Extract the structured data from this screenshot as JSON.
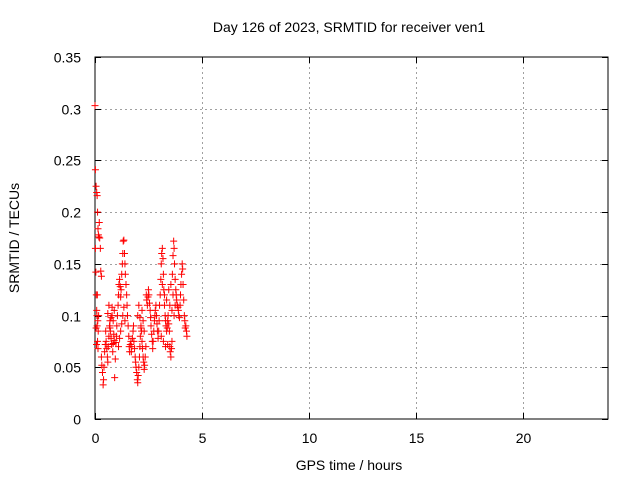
{
  "chart_data": {
    "type": "scatter",
    "title": "Day 126 of 2023, SRMTID for receiver ven1",
    "xlabel": "GPS time / hours",
    "ylabel": "SRMTID / TECUs",
    "xlim": [
      0,
      24
    ],
    "ylim": [
      0,
      0.35
    ],
    "xticks": [
      0,
      5,
      10,
      15,
      20
    ],
    "xtick_labels": [
      "0",
      "5",
      "10",
      "15",
      "20"
    ],
    "yticks": [
      0,
      0.05,
      0.1,
      0.15,
      0.2,
      0.25,
      0.3,
      0.35
    ],
    "ytick_labels": [
      "0",
      "0.05",
      "0.1",
      "0.15",
      "0.2",
      "0.25",
      "0.3",
      "0.35"
    ],
    "grid": true,
    "marker": "+",
    "marker_color": "#ff0000",
    "series": [
      {
        "name": "ven1",
        "points": [
          [
            0.0,
            0.303
          ],
          [
            0.02,
            0.241
          ],
          [
            0.05,
            0.225
          ],
          [
            0.08,
            0.219
          ],
          [
            0.1,
            0.216
          ],
          [
            0.12,
            0.2
          ],
          [
            0.14,
            0.184
          ],
          [
            0.16,
            0.178
          ],
          [
            0.18,
            0.176
          ],
          [
            0.2,
            0.19
          ],
          [
            0.22,
            0.175
          ],
          [
            0.25,
            0.165
          ],
          [
            0.27,
            0.143
          ],
          [
            0.3,
            0.138
          ],
          [
            0.02,
            0.165
          ],
          [
            0.04,
            0.142
          ],
          [
            0.06,
            0.12
          ],
          [
            0.08,
            0.105
          ],
          [
            0.1,
            0.09
          ],
          [
            0.12,
            0.075
          ],
          [
            0.14,
            0.068
          ],
          [
            0.05,
            0.088
          ],
          [
            0.07,
            0.072
          ],
          [
            0.09,
            0.1
          ],
          [
            0.11,
            0.12
          ],
          [
            0.13,
            0.095
          ],
          [
            0.15,
            0.085
          ],
          [
            0.17,
            0.1
          ],
          [
            0.3,
            0.06
          ],
          [
            0.32,
            0.052
          ],
          [
            0.35,
            0.045
          ],
          [
            0.38,
            0.033
          ],
          [
            0.4,
            0.038
          ],
          [
            0.42,
            0.05
          ],
          [
            0.45,
            0.065
          ],
          [
            0.48,
            0.072
          ],
          [
            0.5,
            0.085
          ],
          [
            0.52,
            0.075
          ],
          [
            0.55,
            0.068
          ],
          [
            0.58,
            0.06
          ],
          [
            0.6,
            0.055
          ],
          [
            0.62,
            0.07
          ],
          [
            0.65,
            0.08
          ],
          [
            0.68,
            0.09
          ],
          [
            0.7,
            0.095
          ],
          [
            0.72,
            0.085
          ],
          [
            0.75,
            0.078
          ],
          [
            0.78,
            0.072
          ],
          [
            0.8,
            0.1
          ],
          [
            0.83,
            0.065
          ],
          [
            0.85,
            0.073
          ],
          [
            0.88,
            0.082
          ],
          [
            0.9,
            0.076
          ],
          [
            0.92,
            0.04
          ],
          [
            0.95,
            0.058
          ],
          [
            0.98,
            0.074
          ],
          [
            0.6,
            0.102
          ],
          [
            0.65,
            0.11
          ],
          [
            0.7,
            0.088
          ],
          [
            0.75,
            0.098
          ],
          [
            0.8,
            0.108
          ],
          [
            0.85,
            0.095
          ],
          [
            0.9,
            0.105
          ],
          [
            1.0,
            0.08
          ],
          [
            1.02,
            0.09
          ],
          [
            1.05,
            0.1
          ],
          [
            1.08,
            0.11
          ],
          [
            1.1,
            0.12
          ],
          [
            1.12,
            0.13
          ],
          [
            1.15,
            0.135
          ],
          [
            1.18,
            0.128
          ],
          [
            1.2,
            0.118
          ],
          [
            1.22,
            0.125
          ],
          [
            1.25,
            0.14
          ],
          [
            1.28,
            0.15
          ],
          [
            1.3,
            0.16
          ],
          [
            1.32,
            0.172
          ],
          [
            1.35,
            0.173
          ],
          [
            1.38,
            0.16
          ],
          [
            1.4,
            0.15
          ],
          [
            1.42,
            0.14
          ],
          [
            1.45,
            0.13
          ],
          [
            1.48,
            0.12
          ],
          [
            1.5,
            0.11
          ],
          [
            1.52,
            0.1
          ],
          [
            1.55,
            0.09
          ],
          [
            1.58,
            0.08
          ],
          [
            1.6,
            0.07
          ],
          [
            1.62,
            0.065
          ],
          [
            1.65,
            0.072
          ],
          [
            1.68,
            0.075
          ],
          [
            1.1,
            0.07
          ],
          [
            1.15,
            0.078
          ],
          [
            1.2,
            0.085
          ],
          [
            1.25,
            0.092
          ],
          [
            1.3,
            0.1
          ],
          [
            1.35,
            0.108
          ],
          [
            1.4,
            0.095
          ],
          [
            1.7,
            0.065
          ],
          [
            1.72,
            0.07
          ],
          [
            1.75,
            0.078
          ],
          [
            1.78,
            0.085
          ],
          [
            1.8,
            0.09
          ],
          [
            1.82,
            0.075
          ],
          [
            1.85,
            0.068
          ],
          [
            1.88,
            0.06
          ],
          [
            1.9,
            0.055
          ],
          [
            1.92,
            0.05
          ],
          [
            1.95,
            0.045
          ],
          [
            1.98,
            0.038
          ],
          [
            2.0,
            0.035
          ],
          [
            2.02,
            0.042
          ],
          [
            2.05,
            0.05
          ],
          [
            2.08,
            0.06
          ],
          [
            2.1,
            0.07
          ],
          [
            2.12,
            0.08
          ],
          [
            2.15,
            0.09
          ],
          [
            2.18,
            0.085
          ],
          [
            2.2,
            0.075
          ],
          [
            2.22,
            0.068
          ],
          [
            2.25,
            0.06
          ],
          [
            2.28,
            0.055
          ],
          [
            2.3,
            0.048
          ],
          [
            2.32,
            0.052
          ],
          [
            2.35,
            0.06
          ],
          [
            2.38,
            0.07
          ],
          [
            2.0,
            0.1
          ],
          [
            2.05,
            0.11
          ],
          [
            2.1,
            0.098
          ],
          [
            2.15,
            0.088
          ],
          [
            2.2,
            0.105
          ],
          [
            2.25,
            0.095
          ],
          [
            2.3,
            0.085
          ],
          [
            2.4,
            0.12
          ],
          [
            2.42,
            0.115
          ],
          [
            2.45,
            0.11
          ],
          [
            2.48,
            0.118
          ],
          [
            2.5,
            0.125
          ],
          [
            2.52,
            0.12
          ],
          [
            2.55,
            0.112
          ],
          [
            2.58,
            0.105
          ],
          [
            2.6,
            0.098
          ],
          [
            2.62,
            0.09
          ],
          [
            2.65,
            0.082
          ],
          [
            2.68,
            0.075
          ],
          [
            2.7,
            0.068
          ],
          [
            2.72,
            0.075
          ],
          [
            2.75,
            0.085
          ],
          [
            2.78,
            0.095
          ],
          [
            2.8,
            0.1
          ],
          [
            2.82,
            0.105
          ],
          [
            2.85,
            0.11
          ],
          [
            2.88,
            0.1
          ],
          [
            2.9,
            0.092
          ],
          [
            2.92,
            0.085
          ],
          [
            2.95,
            0.078
          ],
          [
            2.98,
            0.085
          ],
          [
            3.0,
            0.095
          ],
          [
            3.02,
            0.11
          ],
          [
            3.05,
            0.12
          ],
          [
            3.08,
            0.135
          ],
          [
            3.1,
            0.15
          ],
          [
            3.12,
            0.16
          ],
          [
            3.15,
            0.165
          ],
          [
            3.18,
            0.155
          ],
          [
            3.2,
            0.14
          ],
          [
            3.22,
            0.125
          ],
          [
            3.25,
            0.11
          ],
          [
            3.28,
            0.1
          ],
          [
            3.3,
            0.095
          ],
          [
            3.32,
            0.09
          ],
          [
            3.35,
            0.085
          ],
          [
            3.38,
            0.088
          ],
          [
            3.4,
            0.095
          ],
          [
            3.42,
            0.1
          ],
          [
            3.45,
            0.092
          ],
          [
            3.48,
            0.085
          ],
          [
            3.5,
            0.07
          ],
          [
            3.52,
            0.065
          ],
          [
            3.55,
            0.06
          ],
          [
            3.58,
            0.068
          ],
          [
            3.6,
            0.075
          ],
          [
            3.62,
            0.14
          ],
          [
            3.65,
            0.158
          ],
          [
            3.68,
            0.172
          ],
          [
            3.7,
            0.165
          ],
          [
            3.72,
            0.15
          ],
          [
            3.75,
            0.135
          ],
          [
            3.78,
            0.125
          ],
          [
            3.8,
            0.12
          ],
          [
            3.82,
            0.115
          ],
          [
            3.85,
            0.11
          ],
          [
            3.88,
            0.108
          ],
          [
            3.9,
            0.105
          ],
          [
            3.92,
            0.1
          ],
          [
            3.95,
            0.098
          ],
          [
            3.98,
            0.11
          ],
          [
            4.0,
            0.12
          ],
          [
            4.02,
            0.13
          ],
          [
            4.05,
            0.14
          ],
          [
            4.08,
            0.15
          ],
          [
            4.1,
            0.145
          ],
          [
            4.12,
            0.13
          ],
          [
            4.15,
            0.115
          ],
          [
            4.18,
            0.1
          ],
          [
            4.2,
            0.095
          ],
          [
            4.22,
            0.088
          ],
          [
            4.25,
            0.09
          ],
          [
            4.28,
            0.085
          ],
          [
            4.3,
            0.08
          ],
          [
            3.1,
            0.08
          ],
          [
            3.2,
            0.075
          ],
          [
            3.3,
            0.07
          ],
          [
            3.4,
            0.072
          ],
          [
            3.5,
            0.11
          ],
          [
            3.6,
            0.105
          ],
          [
            3.7,
            0.1
          ],
          [
            3.15,
            0.13
          ],
          [
            3.25,
            0.12
          ],
          [
            3.35,
            0.115
          ],
          [
            3.45,
            0.125
          ],
          [
            3.55,
            0.13
          ],
          [
            3.65,
            0.12
          ],
          [
            3.75,
            0.11
          ]
        ]
      }
    ]
  }
}
